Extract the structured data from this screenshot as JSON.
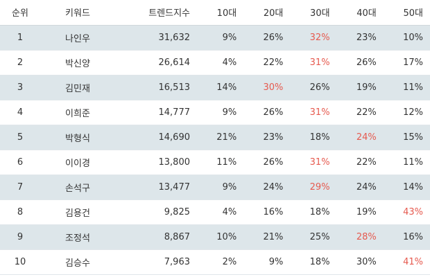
{
  "table": {
    "columns": [
      "순위",
      "키워드",
      "트렌드지수",
      "10대",
      "20대",
      "30대",
      "40대",
      "50대"
    ],
    "highlight_color": "#e65a4f",
    "stripe_color": "#dde6ea",
    "rows": [
      {
        "rank": "1",
        "keyword": "나인우",
        "index": "31,632",
        "ages": [
          "9%",
          "26%",
          "32%",
          "23%",
          "10%"
        ],
        "highlight": [
          false,
          false,
          true,
          false,
          false
        ]
      },
      {
        "rank": "2",
        "keyword": "박신양",
        "index": "26,614",
        "ages": [
          "4%",
          "22%",
          "31%",
          "26%",
          "17%"
        ],
        "highlight": [
          false,
          false,
          true,
          false,
          false
        ]
      },
      {
        "rank": "3",
        "keyword": "김민재",
        "index": "16,513",
        "ages": [
          "14%",
          "30%",
          "26%",
          "19%",
          "11%"
        ],
        "highlight": [
          false,
          true,
          false,
          false,
          false
        ]
      },
      {
        "rank": "4",
        "keyword": "이희준",
        "index": "14,777",
        "ages": [
          "9%",
          "26%",
          "31%",
          "22%",
          "12%"
        ],
        "highlight": [
          false,
          false,
          true,
          false,
          false
        ]
      },
      {
        "rank": "5",
        "keyword": "박형식",
        "index": "14,690",
        "ages": [
          "21%",
          "23%",
          "18%",
          "24%",
          "15%"
        ],
        "highlight": [
          false,
          false,
          false,
          true,
          false
        ]
      },
      {
        "rank": "6",
        "keyword": "이이경",
        "index": "13,800",
        "ages": [
          "11%",
          "26%",
          "31%",
          "22%",
          "11%"
        ],
        "highlight": [
          false,
          false,
          true,
          false,
          false
        ]
      },
      {
        "rank": "7",
        "keyword": "손석구",
        "index": "13,477",
        "ages": [
          "9%",
          "24%",
          "29%",
          "24%",
          "14%"
        ],
        "highlight": [
          false,
          false,
          true,
          false,
          false
        ]
      },
      {
        "rank": "8",
        "keyword": "김용건",
        "index": "9,825",
        "ages": [
          "4%",
          "16%",
          "18%",
          "19%",
          "43%"
        ],
        "highlight": [
          false,
          false,
          false,
          false,
          true
        ]
      },
      {
        "rank": "9",
        "keyword": "조정석",
        "index": "8,867",
        "ages": [
          "10%",
          "21%",
          "25%",
          "28%",
          "16%"
        ],
        "highlight": [
          false,
          false,
          false,
          true,
          false
        ]
      },
      {
        "rank": "10",
        "keyword": "김승수",
        "index": "7,963",
        "ages": [
          "2%",
          "9%",
          "18%",
          "30%",
          "41%"
        ],
        "highlight": [
          false,
          false,
          false,
          false,
          true
        ]
      }
    ]
  }
}
